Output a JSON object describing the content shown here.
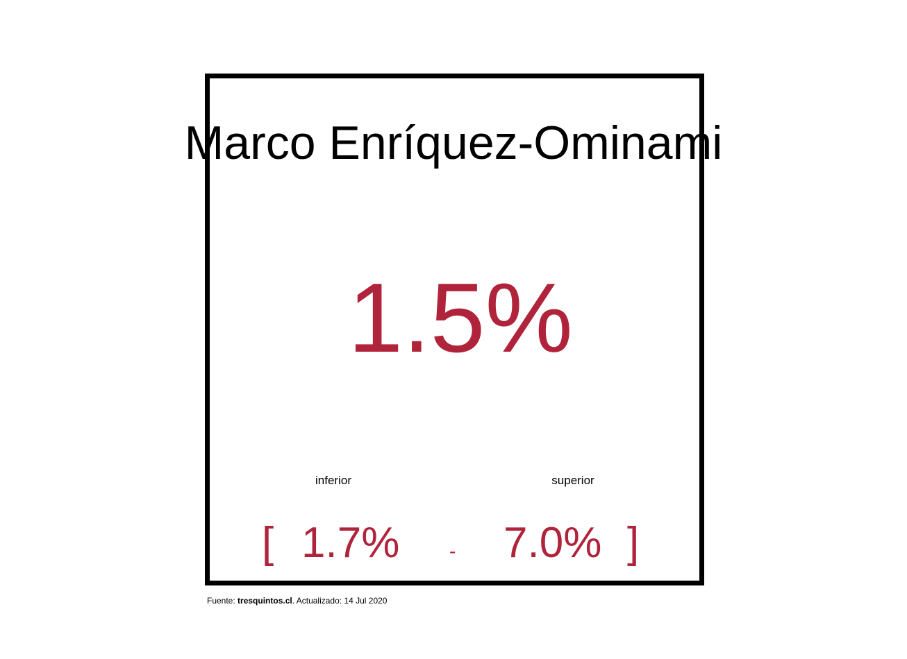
{
  "chart_data": {
    "type": "table",
    "title": "Marco Enríquez-Ominami",
    "value": "1.5%",
    "lower_label": "inferior",
    "upper_label": "superior",
    "lower_value": "1.7%",
    "upper_value": "7.0%",
    "bracket_open": "[",
    "bracket_close": "]",
    "separator": "-"
  },
  "footer": {
    "prefix": "Fuente: ",
    "source": "tresquintos.cl",
    "suffix": ". Actualizado: 14 Jul 2020"
  },
  "colors": {
    "accent": "#b0243b",
    "border": "#000000",
    "text": "#000000"
  }
}
